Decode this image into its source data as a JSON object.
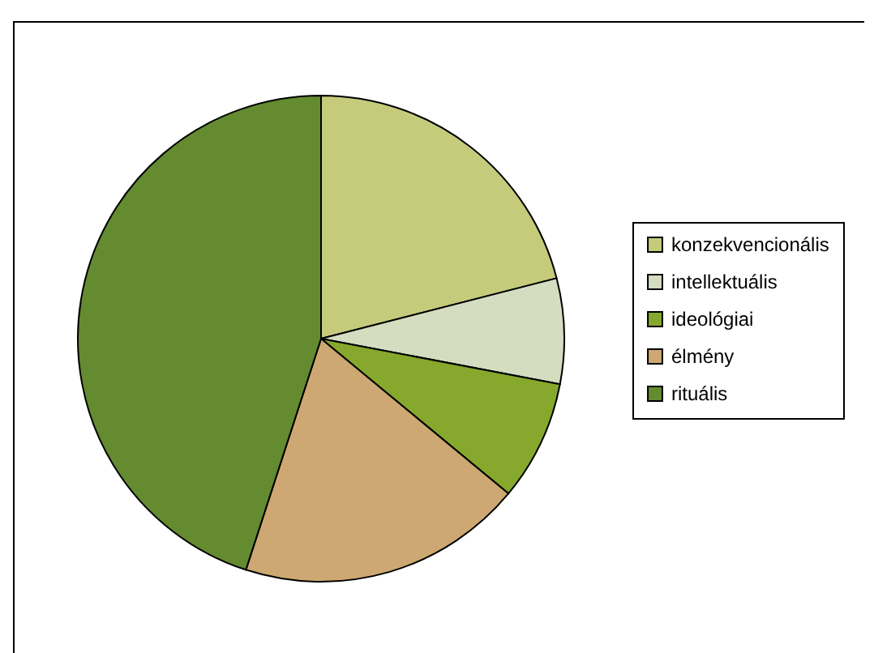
{
  "chart_data": {
    "type": "pie",
    "categories": [
      "konzekvencionális",
      "intellektuális",
      "ideológiai",
      "élmény",
      "rituális"
    ],
    "values": [
      21,
      7,
      8,
      19,
      45
    ],
    "colors": [
      "#c5cb7b",
      "#d4ddc0",
      "#86a92d",
      "#cea872",
      "#648b30"
    ],
    "legend": "right"
  }
}
